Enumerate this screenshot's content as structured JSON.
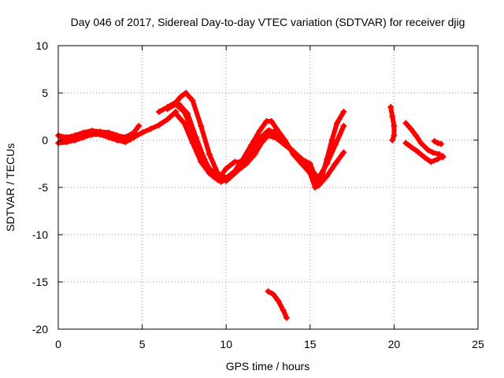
{
  "chart_data": {
    "type": "scatter",
    "title": "Day 046 of 2017, Sidereal Day-to-day VTEC variation (SDTVAR) for receiver djig",
    "xlabel": "GPS time / hours",
    "ylabel": "SDTVAR / TECUs",
    "xlim": [
      0,
      25
    ],
    "ylim": [
      -20,
      10
    ],
    "xticks": [
      0,
      5,
      10,
      15,
      20,
      25
    ],
    "yticks": [
      -20,
      -15,
      -10,
      -5,
      0,
      5,
      10
    ],
    "grid": true,
    "series": [
      {
        "name": "SDTVAR",
        "color": "#ff0000",
        "marker": "+",
        "segments": [
          {
            "x": [
              0.0,
              0.5,
              1.0,
              1.5,
              2.0,
              2.5,
              3.0,
              3.5,
              4.0,
              4.5,
              4.8
            ],
            "y": [
              0.5,
              0.3,
              0.5,
              0.8,
              1.0,
              0.9,
              0.8,
              0.5,
              0.3,
              0.8,
              1.5
            ]
          },
          {
            "x": [
              0.0,
              0.5,
              1.0,
              1.5,
              2.0,
              2.5,
              3.0,
              3.5,
              4.0,
              4.5
            ],
            "y": [
              -0.3,
              -0.2,
              0.0,
              0.3,
              0.6,
              0.6,
              0.3,
              0.0,
              -0.2,
              0.3
            ]
          },
          {
            "x": [
              0.2,
              0.8,
              1.3,
              1.8,
              2.3,
              2.8,
              3.3,
              3.8,
              4.3
            ],
            "y": [
              0.2,
              0.0,
              0.3,
              0.6,
              0.8,
              0.7,
              0.6,
              0.3,
              0.1
            ]
          },
          {
            "x": [
              4.5,
              5.0,
              5.5,
              6.0,
              6.5,
              7.0
            ],
            "y": [
              0.3,
              0.8,
              1.2,
              1.6,
              2.2,
              3.0
            ]
          },
          {
            "x": [
              6.0,
              6.5,
              7.0,
              7.3,
              7.6,
              8.0,
              8.5,
              9.0,
              9.5,
              10.0,
              10.5,
              11.0,
              11.5,
              12.0,
              12.4,
              12.7,
              13.0,
              13.5,
              14.0,
              14.5,
              15.0,
              15.3,
              15.6,
              16.0,
              16.3,
              16.6,
              17.0
            ],
            "y": [
              3.0,
              3.5,
              4.0,
              4.6,
              5.0,
              4.2,
              1.5,
              -1.5,
              -3.5,
              -4.0,
              -3.3,
              -2.0,
              -0.5,
              1.0,
              2.0,
              2.0,
              1.2,
              0.0,
              -1.5,
              -2.5,
              -3.5,
              -5.0,
              -4.5,
              -2.0,
              0.0,
              1.8,
              3.0
            ]
          },
          {
            "x": [
              6.5,
              7.0,
              7.5,
              8.0,
              8.5,
              9.0,
              9.5,
              10.0,
              10.5,
              11.0,
              11.5,
              12.0,
              12.5,
              13.0,
              13.5,
              14.0,
              14.5,
              15.0,
              15.5,
              16.0,
              16.5,
              17.0
            ],
            "y": [
              3.3,
              3.8,
              3.0,
              1.0,
              -1.5,
              -3.0,
              -3.8,
              -4.3,
              -3.5,
              -2.5,
              -1.3,
              0.2,
              1.0,
              0.7,
              -0.3,
              -1.2,
              -2.0,
              -3.0,
              -4.0,
              -2.5,
              -0.5,
              1.5
            ]
          },
          {
            "x": [
              7.0,
              7.5,
              8.0,
              8.5,
              9.0,
              9.5,
              10.0,
              10.5,
              11.0,
              11.5,
              12.0,
              12.5,
              13.0,
              13.5,
              14.0,
              14.5,
              15.0,
              15.5,
              16.0,
              16.5,
              17.0
            ],
            "y": [
              2.8,
              1.8,
              -0.3,
              -2.3,
              -3.5,
              -4.2,
              -3.0,
              -2.3,
              -2.3,
              -1.8,
              -0.5,
              0.5,
              0.2,
              -0.5,
              -1.2,
              -2.0,
              -2.5,
              -4.8,
              -3.8,
              -2.5,
              -1.3
            ]
          },
          {
            "x": [
              7.2,
              7.7,
              8.2,
              8.7,
              9.2,
              9.7,
              10.2,
              10.7,
              11.2,
              11.7,
              12.2,
              12.6,
              13.0
            ],
            "y": [
              3.8,
              2.8,
              0.3,
              -2.0,
              -3.8,
              -4.4,
              -4.0,
              -3.2,
              -2.5,
              -1.5,
              0.0,
              1.0,
              0.8
            ]
          },
          {
            "x": [
              12.5,
              12.8,
              13.1,
              13.4,
              13.6
            ],
            "y": [
              -16.0,
              -16.3,
              -17.0,
              -18.0,
              -18.8
            ]
          },
          {
            "x": [
              19.8,
              19.9,
              20.0,
              20.0,
              19.9
            ],
            "y": [
              3.5,
              2.5,
              1.5,
              0.5,
              0.0
            ]
          },
          {
            "x": [
              20.7,
              21.0,
              21.3,
              21.6,
              22.0,
              22.3,
              22.7,
              22.9
            ],
            "y": [
              1.8,
              1.2,
              0.5,
              -0.3,
              -1.0,
              -1.3,
              -1.5,
              -1.8
            ]
          },
          {
            "x": [
              20.7,
              21.0,
              21.4,
              21.8,
              22.2,
              22.6,
              22.9
            ],
            "y": [
              -0.3,
              -0.7,
              -1.2,
              -1.8,
              -2.3,
              -2.0,
              -1.7
            ]
          },
          {
            "x": [
              22.4,
              22.6,
              22.8
            ],
            "y": [
              -0.1,
              -0.3,
              -0.4
            ]
          }
        ]
      }
    ]
  }
}
